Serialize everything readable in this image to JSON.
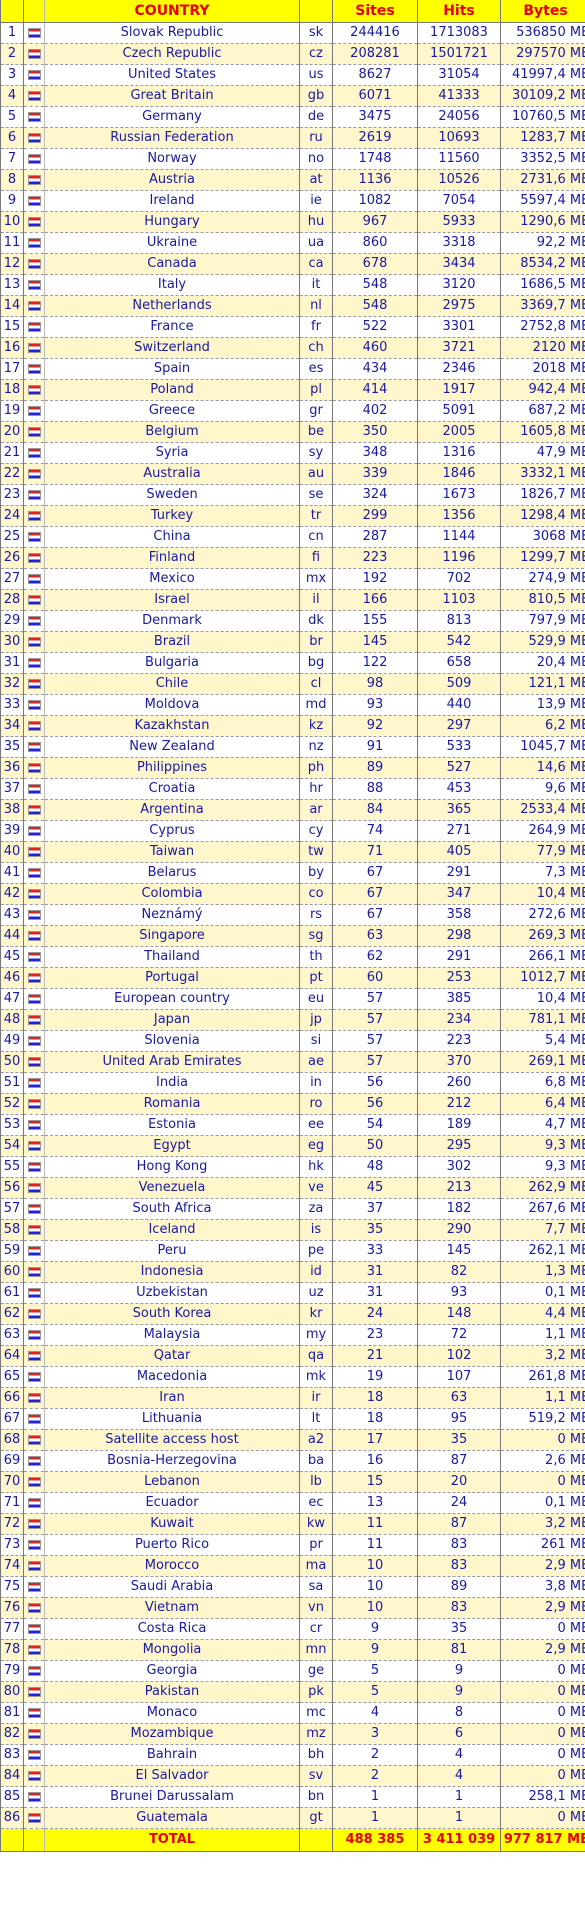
{
  "header": {
    "country": "COUNTRY",
    "sites": "Sites",
    "hits": "Hits",
    "bytes": "Bytes"
  },
  "rows": [
    {
      "n": "1",
      "name": "Slovak Republic",
      "code": "sk",
      "sites": "244416",
      "hits": "1713083",
      "bytes": "536850 MB"
    },
    {
      "n": "2",
      "name": "Czech Republic",
      "code": "cz",
      "sites": "208281",
      "hits": "1501721",
      "bytes": "297570 MB"
    },
    {
      "n": "3",
      "name": "United States",
      "code": "us",
      "sites": "8627",
      "hits": "31054",
      "bytes": "41997,4 MB"
    },
    {
      "n": "4",
      "name": "Great Britain",
      "code": "gb",
      "sites": "6071",
      "hits": "41333",
      "bytes": "30109,2 MB"
    },
    {
      "n": "5",
      "name": "Germany",
      "code": "de",
      "sites": "3475",
      "hits": "24056",
      "bytes": "10760,5 MB"
    },
    {
      "n": "6",
      "name": "Russian Federation",
      "code": "ru",
      "sites": "2619",
      "hits": "10693",
      "bytes": "1283,7 MB"
    },
    {
      "n": "7",
      "name": "Norway",
      "code": "no",
      "sites": "1748",
      "hits": "11560",
      "bytes": "3352,5 MB"
    },
    {
      "n": "8",
      "name": "Austria",
      "code": "at",
      "sites": "1136",
      "hits": "10526",
      "bytes": "2731,6 MB"
    },
    {
      "n": "9",
      "name": "Ireland",
      "code": "ie",
      "sites": "1082",
      "hits": "7054",
      "bytes": "5597,4 MB"
    },
    {
      "n": "10",
      "name": "Hungary",
      "code": "hu",
      "sites": "967",
      "hits": "5933",
      "bytes": "1290,6 MB"
    },
    {
      "n": "11",
      "name": "Ukraine",
      "code": "ua",
      "sites": "860",
      "hits": "3318",
      "bytes": "92,2 MB"
    },
    {
      "n": "12",
      "name": "Canada",
      "code": "ca",
      "sites": "678",
      "hits": "3434",
      "bytes": "8534,2 MB"
    },
    {
      "n": "13",
      "name": "Italy",
      "code": "it",
      "sites": "548",
      "hits": "3120",
      "bytes": "1686,5 MB"
    },
    {
      "n": "14",
      "name": "Netherlands",
      "code": "nl",
      "sites": "548",
      "hits": "2975",
      "bytes": "3369,7 MB"
    },
    {
      "n": "15",
      "name": "France",
      "code": "fr",
      "sites": "522",
      "hits": "3301",
      "bytes": "2752,8 MB"
    },
    {
      "n": "16",
      "name": "Switzerland",
      "code": "ch",
      "sites": "460",
      "hits": "3721",
      "bytes": "2120 MB"
    },
    {
      "n": "17",
      "name": "Spain",
      "code": "es",
      "sites": "434",
      "hits": "2346",
      "bytes": "2018 MB"
    },
    {
      "n": "18",
      "name": "Poland",
      "code": "pl",
      "sites": "414",
      "hits": "1917",
      "bytes": "942,4 MB"
    },
    {
      "n": "19",
      "name": "Greece",
      "code": "gr",
      "sites": "402",
      "hits": "5091",
      "bytes": "687,2 MB"
    },
    {
      "n": "20",
      "name": "Belgium",
      "code": "be",
      "sites": "350",
      "hits": "2005",
      "bytes": "1605,8 MB"
    },
    {
      "n": "21",
      "name": "Syria",
      "code": "sy",
      "sites": "348",
      "hits": "1316",
      "bytes": "47,9 MB"
    },
    {
      "n": "22",
      "name": "Australia",
      "code": "au",
      "sites": "339",
      "hits": "1846",
      "bytes": "3332,1 MB"
    },
    {
      "n": "23",
      "name": "Sweden",
      "code": "se",
      "sites": "324",
      "hits": "1673",
      "bytes": "1826,7 MB"
    },
    {
      "n": "24",
      "name": "Turkey",
      "code": "tr",
      "sites": "299",
      "hits": "1356",
      "bytes": "1298,4 MB"
    },
    {
      "n": "25",
      "name": "China",
      "code": "cn",
      "sites": "287",
      "hits": "1144",
      "bytes": "3068 MB"
    },
    {
      "n": "26",
      "name": "Finland",
      "code": "fi",
      "sites": "223",
      "hits": "1196",
      "bytes": "1299,7 MB"
    },
    {
      "n": "27",
      "name": "Mexico",
      "code": "mx",
      "sites": "192",
      "hits": "702",
      "bytes": "274,9 MB"
    },
    {
      "n": "28",
      "name": "Israel",
      "code": "il",
      "sites": "166",
      "hits": "1103",
      "bytes": "810,5 MB"
    },
    {
      "n": "29",
      "name": "Denmark",
      "code": "dk",
      "sites": "155",
      "hits": "813",
      "bytes": "797,9 MB"
    },
    {
      "n": "30",
      "name": "Brazil",
      "code": "br",
      "sites": "145",
      "hits": "542",
      "bytes": "529,9 MB"
    },
    {
      "n": "31",
      "name": "Bulgaria",
      "code": "bg",
      "sites": "122",
      "hits": "658",
      "bytes": "20,4 MB"
    },
    {
      "n": "32",
      "name": "Chile",
      "code": "cl",
      "sites": "98",
      "hits": "509",
      "bytes": "121,1 MB"
    },
    {
      "n": "33",
      "name": "Moldova",
      "code": "md",
      "sites": "93",
      "hits": "440",
      "bytes": "13,9 MB"
    },
    {
      "n": "34",
      "name": "Kazakhstan",
      "code": "kz",
      "sites": "92",
      "hits": "297",
      "bytes": "6,2 MB"
    },
    {
      "n": "35",
      "name": "New Zealand",
      "code": "nz",
      "sites": "91",
      "hits": "533",
      "bytes": "1045,7 MB"
    },
    {
      "n": "36",
      "name": "Philippines",
      "code": "ph",
      "sites": "89",
      "hits": "527",
      "bytes": "14,6 MB"
    },
    {
      "n": "37",
      "name": "Croatia",
      "code": "hr",
      "sites": "88",
      "hits": "453",
      "bytes": "9,6 MB"
    },
    {
      "n": "38",
      "name": "Argentina",
      "code": "ar",
      "sites": "84",
      "hits": "365",
      "bytes": "2533,4 MB"
    },
    {
      "n": "39",
      "name": "Cyprus",
      "code": "cy",
      "sites": "74",
      "hits": "271",
      "bytes": "264,9 MB"
    },
    {
      "n": "40",
      "name": "Taiwan",
      "code": "tw",
      "sites": "71",
      "hits": "405",
      "bytes": "77,9 MB"
    },
    {
      "n": "41",
      "name": "Belarus",
      "code": "by",
      "sites": "67",
      "hits": "291",
      "bytes": "7,3 MB"
    },
    {
      "n": "42",
      "name": "Colombia",
      "code": "co",
      "sites": "67",
      "hits": "347",
      "bytes": "10,4 MB"
    },
    {
      "n": "43",
      "name": "Neznámý",
      "code": "rs",
      "sites": "67",
      "hits": "358",
      "bytes": "272,6 MB"
    },
    {
      "n": "44",
      "name": "Singapore",
      "code": "sg",
      "sites": "63",
      "hits": "298",
      "bytes": "269,3 MB"
    },
    {
      "n": "45",
      "name": "Thailand",
      "code": "th",
      "sites": "62",
      "hits": "291",
      "bytes": "266,1 MB"
    },
    {
      "n": "46",
      "name": "Portugal",
      "code": "pt",
      "sites": "60",
      "hits": "253",
      "bytes": "1012,7 MB"
    },
    {
      "n": "47",
      "name": "European country",
      "code": "eu",
      "sites": "57",
      "hits": "385",
      "bytes": "10,4 MB"
    },
    {
      "n": "48",
      "name": "Japan",
      "code": "jp",
      "sites": "57",
      "hits": "234",
      "bytes": "781,1 MB"
    },
    {
      "n": "49",
      "name": "Slovenia",
      "code": "si",
      "sites": "57",
      "hits": "223",
      "bytes": "5,4 MB"
    },
    {
      "n": "50",
      "name": "United Arab Emirates",
      "code": "ae",
      "sites": "57",
      "hits": "370",
      "bytes": "269,1 MB"
    },
    {
      "n": "51",
      "name": "India",
      "code": "in",
      "sites": "56",
      "hits": "260",
      "bytes": "6,8 MB"
    },
    {
      "n": "52",
      "name": "Romania",
      "code": "ro",
      "sites": "56",
      "hits": "212",
      "bytes": "6,4 MB"
    },
    {
      "n": "53",
      "name": "Estonia",
      "code": "ee",
      "sites": "54",
      "hits": "189",
      "bytes": "4,7 MB"
    },
    {
      "n": "54",
      "name": "Egypt",
      "code": "eg",
      "sites": "50",
      "hits": "295",
      "bytes": "9,3 MB"
    },
    {
      "n": "55",
      "name": "Hong Kong",
      "code": "hk",
      "sites": "48",
      "hits": "302",
      "bytes": "9,3 MB"
    },
    {
      "n": "56",
      "name": "Venezuela",
      "code": "ve",
      "sites": "45",
      "hits": "213",
      "bytes": "262,9 MB"
    },
    {
      "n": "57",
      "name": "South Africa",
      "code": "za",
      "sites": "37",
      "hits": "182",
      "bytes": "267,6 MB"
    },
    {
      "n": "58",
      "name": "Iceland",
      "code": "is",
      "sites": "35",
      "hits": "290",
      "bytes": "7,7 MB"
    },
    {
      "n": "59",
      "name": "Peru",
      "code": "pe",
      "sites": "33",
      "hits": "145",
      "bytes": "262,1 MB"
    },
    {
      "n": "60",
      "name": "Indonesia",
      "code": "id",
      "sites": "31",
      "hits": "82",
      "bytes": "1,3 MB"
    },
    {
      "n": "61",
      "name": "Uzbekistan",
      "code": "uz",
      "sites": "31",
      "hits": "93",
      "bytes": "0,1 MB"
    },
    {
      "n": "62",
      "name": "South Korea",
      "code": "kr",
      "sites": "24",
      "hits": "148",
      "bytes": "4,4 MB"
    },
    {
      "n": "63",
      "name": "Malaysia",
      "code": "my",
      "sites": "23",
      "hits": "72",
      "bytes": "1,1 MB"
    },
    {
      "n": "64",
      "name": "Qatar",
      "code": "qa",
      "sites": "21",
      "hits": "102",
      "bytes": "3,2 MB"
    },
    {
      "n": "65",
      "name": "Macedonia",
      "code": "mk",
      "sites": "19",
      "hits": "107",
      "bytes": "261,8 MB"
    },
    {
      "n": "66",
      "name": "Iran",
      "code": "ir",
      "sites": "18",
      "hits": "63",
      "bytes": "1,1 MB"
    },
    {
      "n": "67",
      "name": "Lithuania",
      "code": "lt",
      "sites": "18",
      "hits": "95",
      "bytes": "519,2 MB"
    },
    {
      "n": "68",
      "name": "Satellite access host",
      "code": "a2",
      "sites": "17",
      "hits": "35",
      "bytes": "0 MB"
    },
    {
      "n": "69",
      "name": "Bosnia-Herzegovina",
      "code": "ba",
      "sites": "16",
      "hits": "87",
      "bytes": "2,6 MB"
    },
    {
      "n": "70",
      "name": "Lebanon",
      "code": "lb",
      "sites": "15",
      "hits": "20",
      "bytes": "0 MB"
    },
    {
      "n": "71",
      "name": "Ecuador",
      "code": "ec",
      "sites": "13",
      "hits": "24",
      "bytes": "0,1 MB"
    },
    {
      "n": "72",
      "name": "Kuwait",
      "code": "kw",
      "sites": "11",
      "hits": "87",
      "bytes": "3,2 MB"
    },
    {
      "n": "73",
      "name": "Puerto Rico",
      "code": "pr",
      "sites": "11",
      "hits": "83",
      "bytes": "261 MB"
    },
    {
      "n": "74",
      "name": "Morocco",
      "code": "ma",
      "sites": "10",
      "hits": "83",
      "bytes": "2,9 MB"
    },
    {
      "n": "75",
      "name": "Saudi Arabia",
      "code": "sa",
      "sites": "10",
      "hits": "89",
      "bytes": "3,8 MB"
    },
    {
      "n": "76",
      "name": "Vietnam",
      "code": "vn",
      "sites": "10",
      "hits": "83",
      "bytes": "2,9 MB"
    },
    {
      "n": "77",
      "name": "Costa Rica",
      "code": "cr",
      "sites": "9",
      "hits": "35",
      "bytes": "0 MB"
    },
    {
      "n": "78",
      "name": "Mongolia",
      "code": "mn",
      "sites": "9",
      "hits": "81",
      "bytes": "2,9 MB"
    },
    {
      "n": "79",
      "name": "Georgia",
      "code": "ge",
      "sites": "5",
      "hits": "9",
      "bytes": "0 MB"
    },
    {
      "n": "80",
      "name": "Pakistan",
      "code": "pk",
      "sites": "5",
      "hits": "9",
      "bytes": "0 MB"
    },
    {
      "n": "81",
      "name": "Monaco",
      "code": "mc",
      "sites": "4",
      "hits": "8",
      "bytes": "0 MB"
    },
    {
      "n": "82",
      "name": "Mozambique",
      "code": "mz",
      "sites": "3",
      "hits": "6",
      "bytes": "0 MB"
    },
    {
      "n": "83",
      "name": "Bahrain",
      "code": "bh",
      "sites": "2",
      "hits": "4",
      "bytes": "0 MB"
    },
    {
      "n": "84",
      "name": "El Salvador",
      "code": "sv",
      "sites": "2",
      "hits": "4",
      "bytes": "0 MB"
    },
    {
      "n": "85",
      "name": "Brunei Darussalam",
      "code": "bn",
      "sites": "1",
      "hits": "1",
      "bytes": "258,1 MB"
    },
    {
      "n": "86",
      "name": "Guatemala",
      "code": "gt",
      "sites": "1",
      "hits": "1",
      "bytes": "0 MB"
    }
  ],
  "total": {
    "label": "TOTAL",
    "sites": "488 385",
    "hits": "3 411 039",
    "bytes": "977 817 MB"
  }
}
